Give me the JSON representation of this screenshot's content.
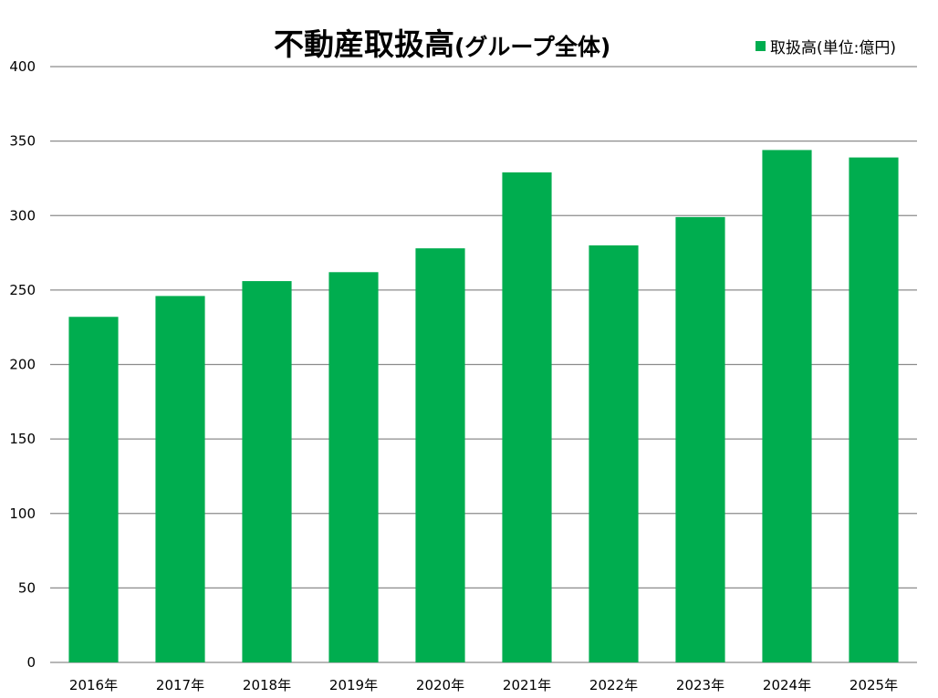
{
  "chart_data": {
    "type": "bar",
    "title": "不動産取扱高",
    "subtitle": "(グループ全体)",
    "categories": [
      "2016年",
      "2017年",
      "2018年",
      "2019年",
      "2020年",
      "2021年",
      "2022年",
      "2023年",
      "2024年",
      "2025年"
    ],
    "series": [
      {
        "name": "取扱高(単位:億円)",
        "color": "#00AD4F",
        "values": [
          232,
          246,
          256,
          262,
          278,
          329,
          280,
          299,
          344,
          339
        ]
      }
    ],
    "ylim": [
      0,
      400
    ],
    "yticks": [
      0,
      50,
      100,
      150,
      200,
      250,
      300,
      350,
      400
    ],
    "grid": true,
    "legend_position": "top-right"
  }
}
